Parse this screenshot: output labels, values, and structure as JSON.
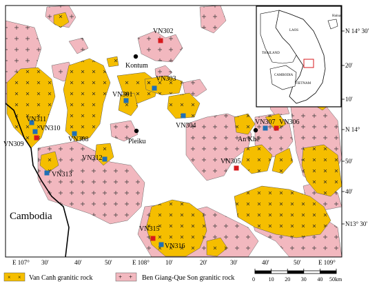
{
  "colors": {
    "van_canh_fill": "#F5BE00",
    "ben_giang_fill": "#F2B8BF",
    "sample_red": "#D7191C",
    "sample_blue": "#1F6FB5",
    "city_dot": "#000000",
    "inset_highlight": "#D7191C"
  },
  "cities": [
    {
      "name": "Kontum"
    },
    {
      "name": "Pleiku"
    },
    {
      "name": "An Khê"
    }
  ],
  "samples": [
    {
      "id": "VN302",
      "type": "red"
    },
    {
      "id": "VN303",
      "type": "blue"
    },
    {
      "id": "VN301",
      "type": "blue"
    },
    {
      "id": "VN304",
      "type": "blue"
    },
    {
      "id": "VN307",
      "type": "blue"
    },
    {
      "id": "VN306",
      "type": "red"
    },
    {
      "id": "VN311",
      "type": "blue"
    },
    {
      "id": "VN310",
      "type": "blue"
    },
    {
      "id": "VN309",
      "type": "red"
    },
    {
      "id": "VN308",
      "type": "blue"
    },
    {
      "id": "VN312",
      "type": "blue"
    },
    {
      "id": "VN313",
      "type": "blue"
    },
    {
      "id": "VN305",
      "type": "red"
    },
    {
      "id": "VN315",
      "type": "red"
    },
    {
      "id": "VN316",
      "type": "blue"
    }
  ],
  "country_label": "Cambodia",
  "lat_labels": [
    "N 14° 30'",
    "20'",
    "10'",
    "N 14°",
    "50'",
    "40'",
    "N13° 30'"
  ],
  "lon_labels": [
    "E 107°",
    "30'",
    "40'",
    "50'",
    "E 108°",
    "10'",
    "20'",
    "30'",
    "40'",
    "50'",
    "E 109°"
  ],
  "inset": {
    "labels": [
      "Hainan",
      "LAOS",
      "THAILAND",
      "CAMBODIA",
      "VIETNAM"
    ]
  },
  "scale_bar": {
    "ticks": [
      "0",
      "10",
      "20",
      "30",
      "40",
      "50km"
    ]
  },
  "legend": {
    "items": [
      {
        "label": "Van Canh granitic rock",
        "symbol": "×",
        "color": "#F5BE00"
      },
      {
        "label": "Ben Giang-Que Son granitic rock",
        "symbol": "+",
        "color": "#F2B8BF"
      }
    ]
  }
}
